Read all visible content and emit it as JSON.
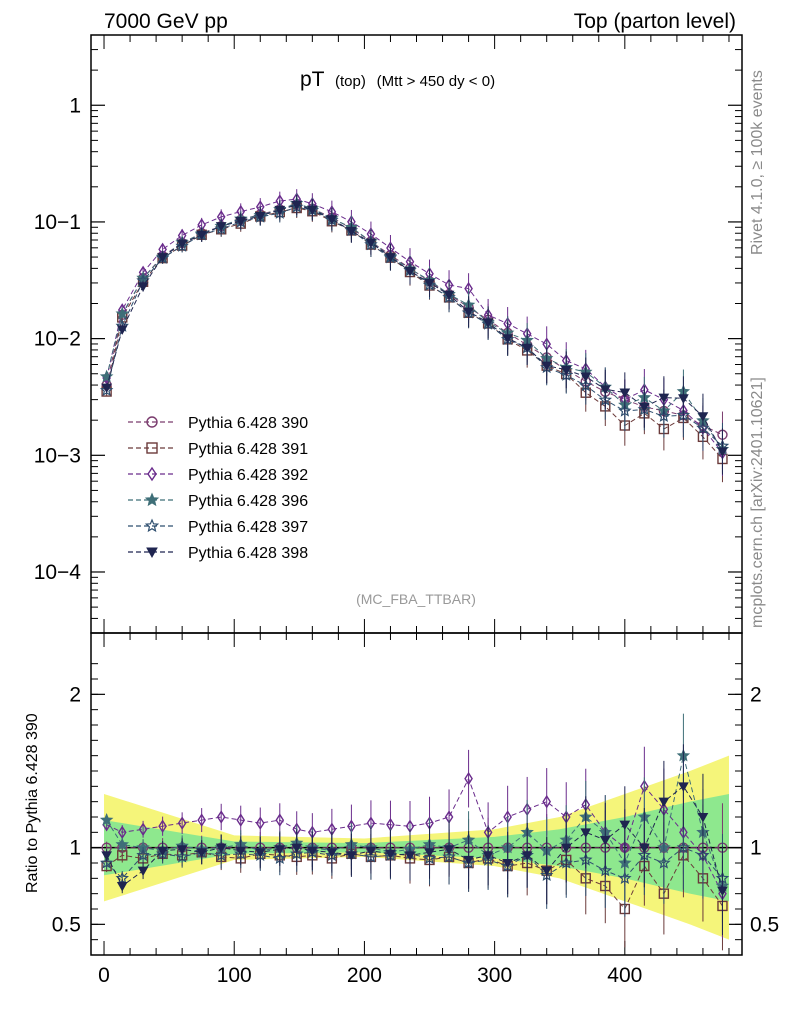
{
  "chart_data": {
    "type": "line",
    "header_left": "7000 GeV pp",
    "header_right": "Top (parton level)",
    "title_main": "pT",
    "title_sub": "(top)",
    "title_cut": "(Mtt > 450 dy < 0)",
    "analysis_tag": "(MC_FBA_TTBAR)",
    "side_label_top": "Rivet 4.1.0, ≥ 100k events",
    "side_label_bottom": "mcplots.cern.ch [arXiv:2401.10621]",
    "xlabel": "",
    "ylabel": "",
    "ratio_ylabel": "Ratio to Pythia 6.428 390",
    "xlim": [
      -10,
      490
    ],
    "ylim": [
      3e-05,
      4
    ],
    "ratio_ylim": [
      0.3,
      2.4
    ],
    "x_ticks": [
      "0",
      "100",
      "200",
      "300",
      "400"
    ],
    "x_tick_values": [
      0,
      100,
      200,
      300,
      400
    ],
    "y_ticks": [
      "1",
      "10−1",
      "10−2",
      "10−3",
      "10−4"
    ],
    "y_tick_values": [
      1,
      0.1,
      0.01,
      0.001,
      0.0001
    ],
    "ratio_ticks": [
      "2",
      "1",
      "0.5"
    ],
    "ratio_tick_values": [
      2,
      1,
      0.5
    ],
    "legend_position": "middle-left",
    "reference_x": [
      2,
      14,
      30,
      45,
      60,
      75,
      90,
      105,
      120,
      135,
      148,
      160,
      175,
      190,
      205,
      220,
      235,
      250,
      265,
      280,
      295,
      310,
      325,
      340,
      355,
      370,
      385,
      400,
      415,
      430,
      445,
      460,
      475
    ],
    "reference_y": [
      0.004,
      0.016,
      0.033,
      0.051,
      0.066,
      0.08,
      0.092,
      0.104,
      0.116,
      0.128,
      0.14,
      0.13,
      0.109,
      0.088,
      0.068,
      0.052,
      0.04,
      0.031,
      0.024,
      0.0185,
      0.0145,
      0.0112,
      0.0088,
      0.0069,
      0.0054,
      0.0043,
      0.0035,
      0.003,
      0.0026,
      0.0024,
      0.0022,
      0.0018,
      0.0015
    ],
    "series": [
      {
        "name": "Pythia 6.428 390",
        "color": "#7a3c6e",
        "marker": "circle",
        "ratio": [
          1.0,
          1.0,
          1.0,
          1.0,
          1.0,
          1.0,
          1.0,
          1.0,
          1.0,
          1.0,
          1.0,
          1.0,
          1.0,
          1.0,
          1.0,
          1.0,
          1.0,
          1.0,
          1.0,
          1.0,
          1.0,
          1.0,
          1.0,
          1.0,
          1.0,
          1.0,
          1.0,
          1.0,
          1.0,
          1.0,
          1.0,
          1.0,
          1.0
        ]
      },
      {
        "name": "Pythia 6.428 391",
        "color": "#6b3a3a",
        "marker": "square",
        "ratio": [
          0.88,
          0.95,
          0.93,
          0.96,
          0.95,
          0.97,
          0.94,
          0.93,
          0.96,
          0.95,
          0.94,
          0.95,
          0.93,
          0.96,
          0.94,
          0.95,
          0.93,
          0.92,
          0.94,
          0.9,
          0.93,
          0.88,
          0.9,
          0.85,
          0.92,
          0.8,
          0.75,
          0.6,
          0.88,
          0.7,
          0.95,
          0.8,
          0.62
        ]
      },
      {
        "name": "Pythia 6.428 392",
        "color": "#6a2c8c",
        "marker": "diamond",
        "ratio": [
          1.15,
          1.1,
          1.12,
          1.14,
          1.16,
          1.18,
          1.2,
          1.18,
          1.16,
          1.18,
          1.12,
          1.1,
          1.12,
          1.14,
          1.16,
          1.15,
          1.14,
          1.16,
          1.2,
          1.45,
          1.1,
          1.2,
          1.25,
          1.3,
          1.2,
          1.28,
          1.1,
          1.0,
          1.4,
          1.25,
          1.1,
          0.95,
          0.7
        ]
      },
      {
        "name": "Pythia 6.428 396",
        "color": "#3f6f78",
        "marker": "star",
        "ratio": [
          1.18,
          1.02,
          1.0,
          0.98,
          1.01,
          0.99,
          1.0,
          1.02,
          0.98,
          1.0,
          1.03,
          1.0,
          0.98,
          1.02,
          1.0,
          0.97,
          0.99,
          1.02,
          1.0,
          1.05,
          0.95,
          1.0,
          1.1,
          0.98,
          1.05,
          1.2,
          1.1,
          0.9,
          1.2,
          1.0,
          1.6,
          1.1,
          0.75
        ]
      },
      {
        "name": "Pythia 6.428 397",
        "color": "#2f4f6f",
        "marker": "star-open",
        "ratio": [
          0.9,
          0.8,
          0.95,
          0.96,
          0.94,
          0.97,
          0.95,
          0.96,
          0.95,
          0.93,
          0.96,
          0.97,
          0.95,
          0.96,
          0.94,
          0.95,
          0.96,
          0.93,
          0.94,
          0.9,
          0.92,
          0.88,
          0.95,
          0.82,
          0.9,
          0.92,
          0.85,
          0.8,
          0.95,
          0.9,
          1.0,
          0.95,
          0.8
        ]
      },
      {
        "name": "Pythia 6.428 398",
        "color": "#1f2550",
        "marker": "triangle-down",
        "ratio": [
          0.95,
          0.75,
          0.85,
          0.98,
          0.99,
          0.97,
          1.0,
          0.98,
          0.97,
          0.99,
          1.0,
          0.98,
          0.97,
          0.95,
          0.98,
          0.96,
          0.95,
          0.97,
          0.99,
          0.92,
          0.95,
          0.9,
          0.95,
          0.85,
          1.0,
          1.1,
          1.05,
          1.15,
          1.0,
          1.3,
          1.4,
          1.2,
          0.72
        ]
      }
    ],
    "band_x": [
      0,
      100,
      200,
      300,
      350,
      400,
      450,
      480
    ],
    "band_yellow_halfwidth": [
      0.35,
      0.08,
      0.06,
      0.12,
      0.2,
      0.35,
      0.5,
      0.6
    ],
    "band_green_halfwidth": [
      0.18,
      0.04,
      0.03,
      0.07,
      0.12,
      0.2,
      0.3,
      0.35
    ]
  }
}
